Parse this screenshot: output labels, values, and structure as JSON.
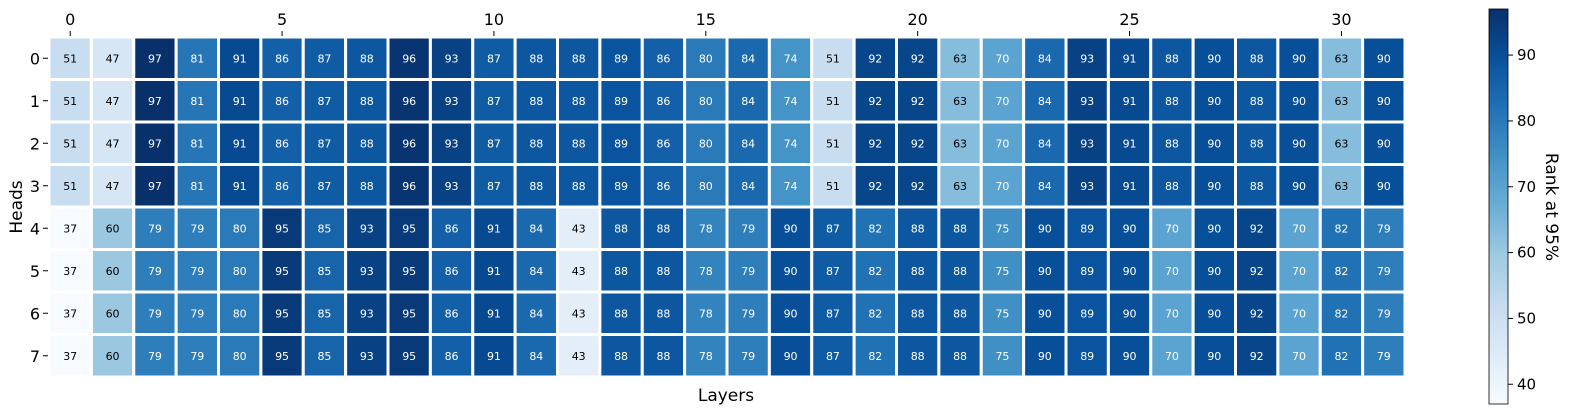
{
  "chart_data": {
    "type": "heatmap",
    "title": "",
    "xlabel": "Layers",
    "ylabel": "Heads",
    "x_ticks": [
      0,
      5,
      10,
      15,
      20,
      25,
      30
    ],
    "y_ticks": [
      0,
      1,
      2,
      3,
      4,
      5,
      6,
      7
    ],
    "x_tick_position": "top",
    "colorbar": {
      "label": "Rank at 95%",
      "ticks": [
        40,
        50,
        60,
        70,
        80,
        90
      ],
      "range": [
        37,
        97
      ],
      "colormap": "Blues",
      "placement": "right"
    },
    "rows": [
      [
        51,
        47,
        97,
        81,
        91,
        86,
        87,
        88,
        96,
        93,
        87,
        88,
        88,
        89,
        86,
        80,
        84,
        74,
        51,
        92,
        92,
        63,
        70,
        84,
        93,
        91,
        88,
        90,
        88,
        90,
        63,
        90
      ],
      [
        51,
        47,
        97,
        81,
        91,
        86,
        87,
        88,
        96,
        93,
        87,
        88,
        88,
        89,
        86,
        80,
        84,
        74,
        51,
        92,
        92,
        63,
        70,
        84,
        93,
        91,
        88,
        90,
        88,
        90,
        63,
        90
      ],
      [
        51,
        47,
        97,
        81,
        91,
        86,
        87,
        88,
        96,
        93,
        87,
        88,
        88,
        89,
        86,
        80,
        84,
        74,
        51,
        92,
        92,
        63,
        70,
        84,
        93,
        91,
        88,
        90,
        88,
        90,
        63,
        90
      ],
      [
        51,
        47,
        97,
        81,
        91,
        86,
        87,
        88,
        96,
        93,
        87,
        88,
        88,
        89,
        86,
        80,
        84,
        74,
        51,
        92,
        92,
        63,
        70,
        84,
        93,
        91,
        88,
        90,
        88,
        90,
        63,
        90
      ],
      [
        37,
        60,
        79,
        79,
        80,
        95,
        85,
        93,
        95,
        86,
        91,
        84,
        43,
        88,
        88,
        78,
        79,
        90,
        87,
        82,
        88,
        88,
        75,
        90,
        89,
        90,
        70,
        90,
        92,
        70,
        82,
        79
      ],
      [
        37,
        60,
        79,
        79,
        80,
        95,
        85,
        93,
        95,
        86,
        91,
        84,
        43,
        88,
        88,
        78,
        79,
        90,
        87,
        82,
        88,
        88,
        75,
        90,
        89,
        90,
        70,
        90,
        92,
        70,
        82,
        79
      ],
      [
        37,
        60,
        79,
        79,
        80,
        95,
        85,
        93,
        95,
        86,
        91,
        84,
        43,
        88,
        88,
        78,
        79,
        90,
        87,
        82,
        88,
        88,
        75,
        90,
        89,
        90,
        70,
        90,
        92,
        70,
        82,
        79
      ],
      [
        37,
        60,
        79,
        79,
        80,
        95,
        85,
        93,
        95,
        86,
        91,
        84,
        43,
        88,
        88,
        78,
        79,
        90,
        87,
        82,
        88,
        88,
        75,
        90,
        89,
        90,
        70,
        90,
        92,
        70,
        82,
        79
      ]
    ]
  }
}
